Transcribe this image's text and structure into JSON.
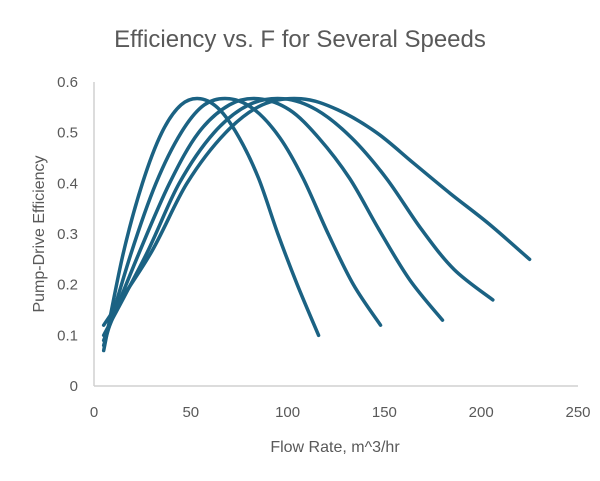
{
  "chart_data": {
    "type": "line",
    "title": "Efficiency vs. F for Several Speeds",
    "xlabel": "Flow Rate, m^3/hr",
    "ylabel": "Pump-Drive Efficiency",
    "xlim": [
      0,
      250
    ],
    "ylim": [
      0,
      0.6
    ],
    "xticks": [
      0,
      50,
      100,
      150,
      200,
      250
    ],
    "yticks": [
      0,
      0.1,
      0.2,
      0.3,
      0.4,
      0.5,
      0.6
    ],
    "ytick_labels": [
      "0",
      "0.1",
      "0.2",
      "0.3",
      "0.4",
      "0.5",
      "0.6"
    ],
    "grid": false,
    "legend": "none",
    "line_color": "#1b6283",
    "series": [
      {
        "points": [
          [
            5,
            0.07
          ],
          [
            15,
            0.26
          ],
          [
            25,
            0.4
          ],
          [
            35,
            0.5
          ],
          [
            45,
            0.555
          ],
          [
            55,
            0.567
          ],
          [
            65,
            0.545
          ],
          [
            75,
            0.49
          ],
          [
            85,
            0.41
          ],
          [
            95,
            0.3
          ],
          [
            105,
            0.2
          ],
          [
            116,
            0.1
          ]
        ]
      },
      {
        "points": [
          [
            5,
            0.08
          ],
          [
            19,
            0.26
          ],
          [
            32,
            0.4
          ],
          [
            45,
            0.5
          ],
          [
            57,
            0.555
          ],
          [
            70,
            0.567
          ],
          [
            83,
            0.545
          ],
          [
            96,
            0.49
          ],
          [
            108,
            0.41
          ],
          [
            121,
            0.3
          ],
          [
            134,
            0.2
          ],
          [
            148,
            0.12
          ]
        ]
      },
      {
        "points": [
          [
            5,
            0.09
          ],
          [
            23,
            0.26
          ],
          [
            39,
            0.4
          ],
          [
            54,
            0.5
          ],
          [
            70,
            0.555
          ],
          [
            85,
            0.567
          ],
          [
            101,
            0.545
          ],
          [
            116,
            0.49
          ],
          [
            132,
            0.41
          ],
          [
            147,
            0.31
          ],
          [
            163,
            0.21
          ],
          [
            180,
            0.13
          ]
        ]
      },
      {
        "points": [
          [
            5,
            0.1
          ],
          [
            27,
            0.26
          ],
          [
            44,
            0.4
          ],
          [
            62,
            0.5
          ],
          [
            80,
            0.555
          ],
          [
            98,
            0.567
          ],
          [
            115,
            0.545
          ],
          [
            133,
            0.49
          ],
          [
            151,
            0.41
          ],
          [
            169,
            0.31
          ],
          [
            186,
            0.23
          ],
          [
            206,
            0.17
          ]
        ]
      },
      {
        "points": [
          [
            5,
            0.12
          ],
          [
            29,
            0.26
          ],
          [
            48,
            0.4
          ],
          [
            68,
            0.5
          ],
          [
            87,
            0.555
          ],
          [
            107,
            0.567
          ],
          [
            126,
            0.545
          ],
          [
            146,
            0.5
          ],
          [
            165,
            0.44
          ],
          [
            184,
            0.38
          ],
          [
            204,
            0.32
          ],
          [
            225,
            0.25
          ]
        ]
      }
    ]
  }
}
